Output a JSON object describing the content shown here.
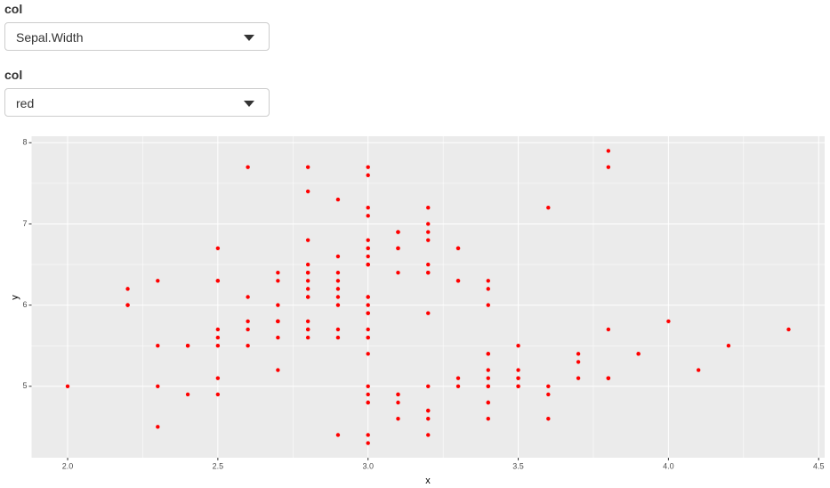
{
  "inputs": [
    {
      "label": "col",
      "selected": "Sepal.Width"
    },
    {
      "label": "col",
      "selected": "red"
    }
  ],
  "chart_data": {
    "type": "scatter",
    "x_label": "x",
    "y_label": "y",
    "color": "#ff0000",
    "grid": true,
    "xlim": [
      1.88,
      4.52
    ],
    "ylim": [
      4.12,
      8.08
    ],
    "xticks": [
      {
        "value": 2,
        "label": "2.0"
      },
      2.5,
      {
        "value": 3,
        "label": "3.0"
      },
      3.5,
      {
        "value": 4,
        "label": "4.0"
      },
      4.5
    ],
    "yticks": [
      5,
      6,
      7,
      8
    ],
    "x": [
      3.5,
      3.0,
      3.2,
      3.1,
      3.6,
      3.9,
      3.4,
      3.4,
      2.9,
      3.1,
      3.7,
      3.4,
      3.0,
      3.0,
      4.0,
      4.4,
      3.9,
      3.5,
      3.8,
      3.8,
      3.4,
      3.7,
      3.6,
      3.3,
      3.4,
      3.0,
      3.4,
      3.5,
      3.4,
      3.2,
      3.1,
      3.4,
      4.1,
      4.2,
      3.1,
      3.2,
      3.5,
      3.6,
      3.0,
      3.4,
      3.5,
      2.3,
      3.2,
      3.5,
      3.8,
      3.0,
      3.8,
      3.2,
      3.7,
      3.3,
      3.2,
      3.2,
      3.1,
      2.3,
      2.8,
      2.8,
      3.3,
      2.4,
      2.9,
      2.7,
      2.0,
      3.0,
      2.2,
      2.9,
      2.9,
      3.1,
      3.0,
      2.7,
      2.2,
      2.5,
      3.2,
      2.8,
      2.5,
      2.8,
      2.9,
      3.0,
      2.8,
      3.0,
      2.9,
      2.6,
      2.4,
      2.4,
      2.7,
      2.7,
      3.0,
      3.4,
      3.1,
      2.3,
      3.0,
      2.5,
      2.6,
      3.0,
      2.6,
      2.3,
      2.7,
      3.0,
      2.9,
      2.9,
      2.5,
      2.8,
      3.3,
      2.7,
      3.0,
      2.9,
      3.0,
      3.0,
      2.5,
      2.9,
      2.5,
      3.6,
      3.2,
      2.7,
      3.0,
      2.5,
      2.8,
      3.2,
      3.0,
      3.8,
      2.6,
      2.2,
      3.2,
      2.8,
      2.8,
      2.7,
      3.3,
      3.2,
      2.8,
      3.0,
      2.8,
      3.0,
      2.8,
      3.8,
      2.8,
      2.8,
      2.6,
      3.0,
      3.4,
      3.1,
      3.0,
      3.1,
      3.1,
      3.1,
      2.7,
      3.2,
      3.3,
      3.0,
      2.5,
      3.0,
      3.4,
      3.0
    ],
    "values": [
      5.1,
      4.9,
      4.7,
      4.6,
      5.0,
      5.4,
      4.6,
      5.0,
      4.4,
      4.9,
      5.4,
      4.8,
      4.8,
      4.3,
      5.8,
      5.7,
      5.4,
      5.1,
      5.7,
      5.1,
      5.4,
      5.1,
      4.6,
      5.1,
      4.8,
      5.0,
      5.0,
      5.2,
      5.2,
      4.7,
      4.8,
      5.4,
      5.2,
      5.5,
      4.9,
      5.0,
      5.5,
      4.9,
      4.4,
      5.1,
      5.0,
      4.5,
      4.4,
      5.0,
      5.1,
      4.8,
      5.1,
      4.6,
      5.3,
      5.0,
      7.0,
      6.4,
      6.9,
      5.5,
      6.5,
      5.7,
      6.3,
      4.9,
      6.6,
      5.2,
      5.0,
      5.9,
      6.0,
      6.1,
      5.6,
      6.7,
      5.6,
      5.8,
      6.2,
      5.6,
      5.9,
      6.1,
      6.3,
      6.1,
      6.4,
      6.6,
      6.8,
      6.7,
      6.0,
      5.7,
      5.5,
      5.5,
      5.8,
      6.0,
      5.4,
      6.0,
      6.7,
      6.3,
      5.6,
      5.5,
      5.5,
      6.1,
      5.8,
      5.0,
      5.6,
      5.7,
      5.7,
      6.2,
      5.1,
      5.7,
      6.3,
      5.8,
      7.1,
      6.3,
      6.5,
      7.6,
      4.9,
      7.3,
      6.7,
      7.2,
      6.5,
      6.4,
      6.8,
      5.7,
      5.8,
      6.4,
      6.5,
      7.7,
      7.7,
      6.0,
      6.9,
      5.6,
      7.7,
      6.3,
      6.7,
      7.2,
      6.2,
      6.1,
      6.4,
      7.2,
      7.4,
      7.9,
      6.4,
      6.3,
      6.1,
      7.7,
      6.3,
      6.4,
      6.0,
      6.9,
      6.7,
      6.9,
      5.8,
      6.8,
      6.7,
      6.7,
      6.3,
      6.5,
      6.2,
      5.9
    ]
  }
}
